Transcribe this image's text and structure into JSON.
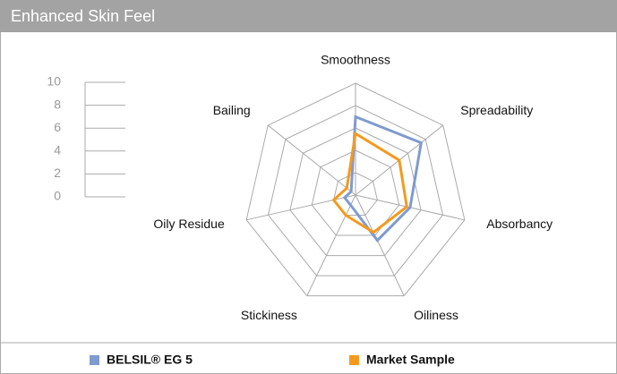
{
  "chart_data": {
    "type": "radar",
    "title": "Enhanced Skin Feel",
    "categories": [
      "Smoothness",
      "Spreadability",
      "Absorbancy",
      "Oiliness",
      "Stickiness",
      "Oily Residue",
      "Bailing"
    ],
    "series": [
      {
        "name": "BELSIL® EG 5",
        "color": "#7f9bcf",
        "values": [
          7,
          7.5,
          5,
          4.5,
          1,
          1,
          0.5
        ]
      },
      {
        "name": "Market Sample",
        "color": "#f39a1e",
        "values": [
          5.5,
          5,
          4.7,
          3.7,
          2,
          2,
          1
        ]
      }
    ],
    "ylim": [
      0,
      10
    ],
    "yticks": [
      0,
      2,
      4,
      6,
      8,
      10
    ],
    "grid": true
  }
}
